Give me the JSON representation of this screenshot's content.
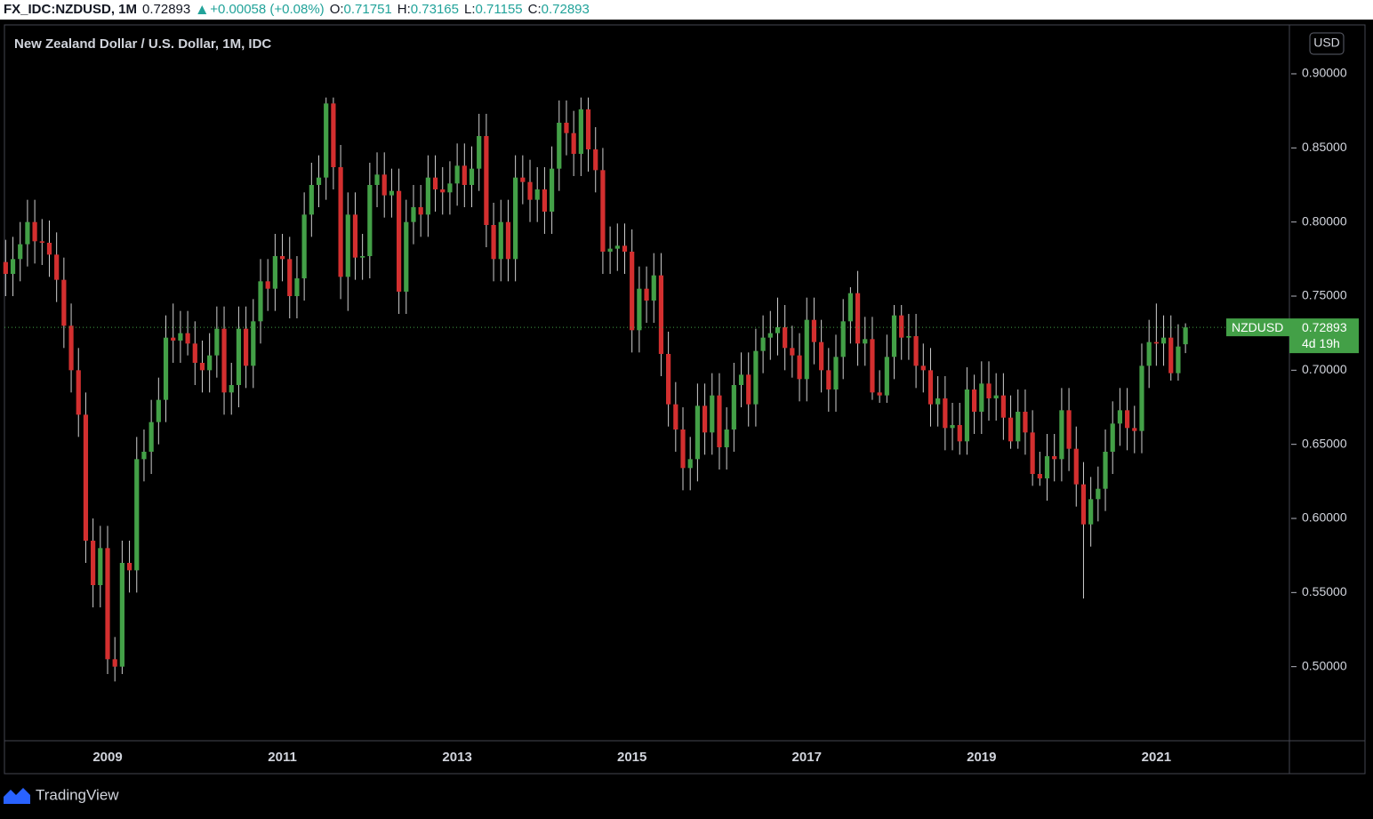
{
  "header": {
    "symbol": "FX_IDC:NZDUSD, 1M",
    "change": "+0.00058 (+0.08%)",
    "o_label": "O:",
    "h_label": "H:",
    "l_label": "L:",
    "c_label": "C:"
  },
  "footer": {
    "brand": "TradingView"
  },
  "chart_data": {
    "type": "candlestick",
    "title": "New Zealand Dollar / U.S. Dollar, 1M, IDC",
    "axis_unit": "USD",
    "symbol_label": "NZDUSD",
    "countdown": "4d 19h",
    "up_color": "#43a047",
    "down_color": "#d32f2f",
    "wick_color": "#cfcfcf",
    "grid": false,
    "ylim": [
      0.45,
      0.933
    ],
    "yticks": [
      {
        "value": 0.5,
        "label": "0.50000"
      },
      {
        "value": 0.55,
        "label": "0.55000"
      },
      {
        "value": 0.6,
        "label": "0.60000"
      },
      {
        "value": 0.65,
        "label": "0.65000"
      },
      {
        "value": 0.7,
        "label": "0.70000"
      },
      {
        "value": 0.75,
        "label": "0.75000"
      },
      {
        "value": 0.8,
        "label": "0.80000"
      },
      {
        "value": 0.85,
        "label": "0.85000"
      },
      {
        "value": 0.9,
        "label": "0.90000"
      }
    ],
    "categories": [
      null,
      null,
      null,
      null,
      null,
      null,
      null,
      null,
      null,
      null,
      null,
      null,
      null,
      null,
      "2009",
      null,
      null,
      null,
      null,
      null,
      null,
      null,
      null,
      null,
      null,
      null,
      null,
      null,
      null,
      null,
      null,
      null,
      null,
      null,
      null,
      null,
      null,
      null,
      "2011",
      null,
      null,
      null,
      null,
      null,
      null,
      null,
      null,
      null,
      null,
      null,
      null,
      null,
      null,
      null,
      null,
      null,
      null,
      null,
      null,
      null,
      null,
      null,
      "2013",
      null,
      null,
      null,
      null,
      null,
      null,
      null,
      null,
      null,
      null,
      null,
      null,
      null,
      null,
      null,
      null,
      null,
      null,
      null,
      null,
      null,
      null,
      null,
      "2015",
      null,
      null,
      null,
      null,
      null,
      null,
      null,
      null,
      null,
      null,
      null,
      null,
      null,
      null,
      null,
      null,
      null,
      null,
      null,
      null,
      null,
      null,
      null,
      "2017",
      null,
      null,
      null,
      null,
      null,
      null,
      null,
      null,
      null,
      null,
      null,
      null,
      null,
      null,
      null,
      null,
      null,
      null,
      null,
      null,
      null,
      null,
      null,
      "2019",
      null,
      null,
      null,
      null,
      null,
      null,
      null,
      null,
      null,
      null,
      null,
      null,
      null,
      null,
      null,
      null,
      null,
      null,
      null,
      null,
      null,
      null,
      null,
      "2021",
      null,
      null,
      null,
      null
    ],
    "open": [
      0.773,
      0.765,
      0.775,
      0.785,
      0.8,
      0.787,
      0.786,
      0.778,
      0.761,
      0.73,
      0.7,
      0.67,
      0.585,
      0.555,
      0.58,
      0.505,
      0.5,
      0.57,
      0.565,
      0.64,
      0.645,
      0.665,
      0.68,
      0.722,
      0.72,
      0.725,
      0.718,
      0.705,
      0.7,
      0.71,
      0.728,
      0.685,
      0.69,
      0.728,
      0.703,
      0.733,
      0.76,
      0.755,
      0.777,
      0.775,
      0.75,
      0.762,
      0.805,
      0.825,
      0.83,
      0.88,
      0.837,
      0.763,
      0.805,
      0.776,
      0.777,
      0.825,
      0.832,
      0.818,
      0.821,
      0.753,
      0.8,
      0.81,
      0.805,
      0.83,
      0.822,
      0.82,
      0.826,
      0.838,
      0.825,
      0.836,
      0.858,
      0.798,
      0.775,
      0.8,
      0.775,
      0.83,
      0.827,
      0.815,
      0.822,
      0.807,
      0.836,
      0.867,
      0.86,
      0.846,
      0.876,
      0.849,
      0.835,
      0.78,
      0.782,
      0.784,
      0.78,
      0.727,
      0.755,
      0.747,
      0.764,
      0.711,
      0.677,
      0.66,
      0.634,
      0.64,
      0.676,
      0.658,
      0.683,
      0.648,
      0.66,
      0.69,
      0.697,
      0.677,
      0.713,
      0.722,
      0.725,
      0.729,
      0.715,
      0.71,
      0.694,
      0.734,
      0.719,
      0.7,
      0.687,
      0.709,
      0.733,
      0.752,
      0.718,
      0.721,
      0.685,
      0.683,
      0.709,
      0.737,
      0.722,
      0.723,
      0.703,
      0.7,
      0.677,
      0.681,
      0.661,
      0.663,
      0.652,
      0.687,
      0.672,
      0.691,
      0.681,
      0.683,
      0.668,
      0.652,
      0.672,
      0.658,
      0.63,
      0.627,
      0.642,
      0.64,
      0.673,
      0.647,
      0.623,
      0.596,
      0.613,
      0.62,
      0.645,
      0.664,
      0.673,
      0.661,
      0.659,
      0.703,
      0.719,
      0.718,
      0.722,
      0.698,
      0.71751
    ],
    "high": [
      0.788,
      0.79,
      0.8,
      0.815,
      0.815,
      0.802,
      0.801,
      0.793,
      0.776,
      0.745,
      0.715,
      0.685,
      0.6,
      0.595,
      0.595,
      0.52,
      0.585,
      0.585,
      0.655,
      0.66,
      0.68,
      0.695,
      0.737,
      0.745,
      0.74,
      0.74,
      0.733,
      0.72,
      0.725,
      0.743,
      0.743,
      0.705,
      0.743,
      0.743,
      0.748,
      0.775,
      0.775,
      0.792,
      0.792,
      0.79,
      0.777,
      0.82,
      0.84,
      0.845,
      0.884,
      0.884,
      0.852,
      0.82,
      0.82,
      0.792,
      0.84,
      0.847,
      0.847,
      0.836,
      0.836,
      0.815,
      0.825,
      0.825,
      0.845,
      0.845,
      0.837,
      0.841,
      0.853,
      0.853,
      0.851,
      0.873,
      0.873,
      0.813,
      0.815,
      0.815,
      0.845,
      0.845,
      0.842,
      0.837,
      0.837,
      0.851,
      0.882,
      0.882,
      0.875,
      0.884,
      0.884,
      0.864,
      0.85,
      0.797,
      0.799,
      0.799,
      0.795,
      0.77,
      0.77,
      0.779,
      0.779,
      0.726,
      0.692,
      0.675,
      0.655,
      0.691,
      0.691,
      0.698,
      0.698,
      0.675,
      0.705,
      0.712,
      0.712,
      0.728,
      0.737,
      0.74,
      0.749,
      0.744,
      0.73,
      0.725,
      0.749,
      0.749,
      0.734,
      0.715,
      0.724,
      0.748,
      0.756,
      0.767,
      0.736,
      0.736,
      0.7,
      0.724,
      0.744,
      0.744,
      0.738,
      0.738,
      0.718,
      0.715,
      0.696,
      0.696,
      0.678,
      0.678,
      0.702,
      0.697,
      0.706,
      0.706,
      0.698,
      0.698,
      0.683,
      0.687,
      0.687,
      0.673,
      0.645,
      0.657,
      0.657,
      0.688,
      0.688,
      0.662,
      0.638,
      0.628,
      0.635,
      0.66,
      0.679,
      0.688,
      0.688,
      0.676,
      0.718,
      0.734,
      0.745,
      0.737,
      0.737,
      0.731,
      0.73165
    ],
    "low": [
      0.75,
      0.75,
      0.76,
      0.77,
      0.772,
      0.771,
      0.763,
      0.746,
      0.715,
      0.685,
      0.655,
      0.57,
      0.54,
      0.54,
      0.495,
      0.49,
      0.495,
      0.55,
      0.55,
      0.625,
      0.63,
      0.65,
      0.665,
      0.705,
      0.705,
      0.71,
      0.69,
      0.685,
      0.685,
      0.695,
      0.67,
      0.67,
      0.675,
      0.688,
      0.688,
      0.718,
      0.74,
      0.74,
      0.76,
      0.735,
      0.735,
      0.747,
      0.79,
      0.81,
      0.815,
      0.822,
      0.748,
      0.74,
      0.761,
      0.761,
      0.762,
      0.81,
      0.803,
      0.803,
      0.738,
      0.738,
      0.785,
      0.79,
      0.79,
      0.807,
      0.805,
      0.805,
      0.811,
      0.81,
      0.81,
      0.821,
      0.783,
      0.76,
      0.76,
      0.76,
      0.76,
      0.812,
      0.8,
      0.8,
      0.792,
      0.792,
      0.821,
      0.845,
      0.831,
      0.831,
      0.834,
      0.82,
      0.765,
      0.765,
      0.767,
      0.765,
      0.712,
      0.712,
      0.732,
      0.732,
      0.696,
      0.662,
      0.645,
      0.619,
      0.619,
      0.625,
      0.643,
      0.643,
      0.633,
      0.633,
      0.645,
      0.675,
      0.662,
      0.662,
      0.698,
      0.707,
      0.71,
      0.7,
      0.695,
      0.679,
      0.679,
      0.704,
      0.685,
      0.672,
      0.672,
      0.694,
      0.718,
      0.703,
      0.703,
      0.68,
      0.678,
      0.678,
      0.694,
      0.707,
      0.707,
      0.688,
      0.685,
      0.662,
      0.662,
      0.646,
      0.646,
      0.643,
      0.643,
      0.657,
      0.657,
      0.666,
      0.666,
      0.653,
      0.647,
      0.647,
      0.643,
      0.622,
      0.622,
      0.612,
      0.625,
      0.625,
      0.632,
      0.608,
      0.546,
      0.581,
      0.598,
      0.605,
      0.63,
      0.649,
      0.646,
      0.644,
      0.644,
      0.688,
      0.703,
      0.703,
      0.693,
      0.693,
      0.71155
    ],
    "close": [
      0.765,
      0.775,
      0.785,
      0.8,
      0.787,
      0.786,
      0.778,
      0.761,
      0.73,
      0.7,
      0.67,
      0.585,
      0.555,
      0.58,
      0.505,
      0.5,
      0.57,
      0.565,
      0.64,
      0.645,
      0.665,
      0.68,
      0.722,
      0.72,
      0.725,
      0.718,
      0.705,
      0.7,
      0.71,
      0.728,
      0.685,
      0.69,
      0.728,
      0.703,
      0.733,
      0.76,
      0.755,
      0.777,
      0.775,
      0.75,
      0.762,
      0.805,
      0.825,
      0.83,
      0.88,
      0.837,
      0.763,
      0.805,
      0.776,
      0.777,
      0.825,
      0.832,
      0.818,
      0.821,
      0.753,
      0.8,
      0.81,
      0.805,
      0.83,
      0.822,
      0.82,
      0.826,
      0.838,
      0.825,
      0.836,
      0.858,
      0.798,
      0.775,
      0.8,
      0.775,
      0.83,
      0.827,
      0.815,
      0.822,
      0.807,
      0.836,
      0.867,
      0.86,
      0.846,
      0.876,
      0.849,
      0.835,
      0.78,
      0.782,
      0.784,
      0.78,
      0.727,
      0.755,
      0.747,
      0.764,
      0.711,
      0.677,
      0.66,
      0.634,
      0.64,
      0.676,
      0.658,
      0.683,
      0.648,
      0.66,
      0.69,
      0.697,
      0.677,
      0.713,
      0.722,
      0.725,
      0.729,
      0.715,
      0.71,
      0.694,
      0.734,
      0.719,
      0.7,
      0.687,
      0.709,
      0.733,
      0.752,
      0.718,
      0.721,
      0.685,
      0.683,
      0.709,
      0.737,
      0.722,
      0.723,
      0.703,
      0.7,
      0.677,
      0.681,
      0.661,
      0.663,
      0.652,
      0.687,
      0.672,
      0.691,
      0.681,
      0.683,
      0.668,
      0.652,
      0.672,
      0.658,
      0.63,
      0.627,
      0.642,
      0.64,
      0.673,
      0.647,
      0.623,
      0.596,
      0.613,
      0.62,
      0.645,
      0.664,
      0.673,
      0.661,
      0.659,
      0.703,
      0.719,
      0.718,
      0.722,
      0.698,
      0.716,
      0.72893
    ]
  }
}
